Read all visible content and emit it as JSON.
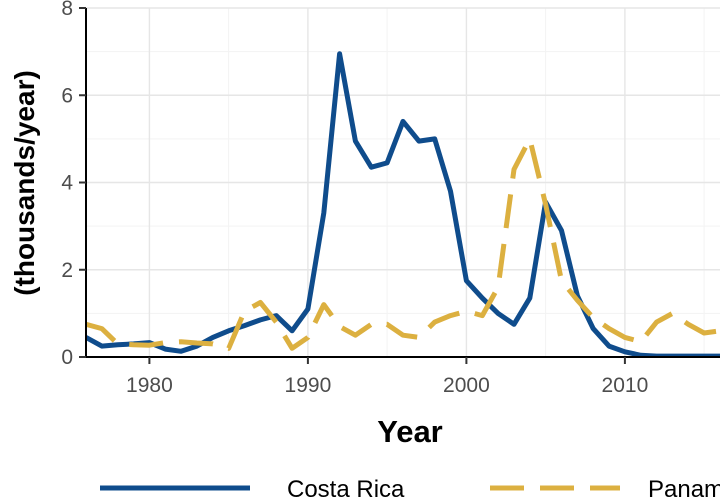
{
  "chart_data": {
    "type": "line",
    "title": "",
    "xlabel": "Year",
    "ylabel": "(thousands/year)",
    "xlim": [
      1976,
      2016
    ],
    "ylim": [
      0,
      8
    ],
    "x_ticks": [
      1980,
      1990,
      2000,
      2010
    ],
    "y_ticks": [
      0,
      2,
      4,
      6,
      8
    ],
    "grid": true,
    "legend_position": "bottom",
    "series": [
      {
        "name": "Costa Rica",
        "color": "#0f4c8c",
        "style": "solid",
        "x": [
          1976,
          1977,
          1978,
          1979,
          1980,
          1981,
          1982,
          1983,
          1984,
          1985,
          1986,
          1987,
          1988,
          1989,
          1990,
          1991,
          1992,
          1993,
          1994,
          1995,
          1996,
          1997,
          1998,
          1999,
          2000,
          2001,
          2002,
          2003,
          2004,
          2005,
          2006,
          2007,
          2008,
          2009,
          2010,
          2011,
          2012,
          2013,
          2014,
          2015,
          2016
        ],
        "values": [
          0.45,
          0.25,
          0.28,
          0.3,
          0.33,
          0.18,
          0.13,
          0.25,
          0.45,
          0.6,
          0.72,
          0.85,
          0.95,
          0.6,
          1.1,
          3.3,
          6.95,
          4.95,
          4.35,
          4.45,
          5.4,
          4.95,
          5.0,
          3.8,
          1.75,
          1.35,
          1.0,
          0.75,
          1.35,
          3.55,
          2.9,
          1.4,
          0.65,
          0.25,
          0.12,
          0.04,
          0.02,
          0.02,
          0.02,
          0.02,
          0.02
        ]
      },
      {
        "name": "Panama",
        "color": "#dcb040",
        "style": "dashed",
        "x": [
          1976,
          1977,
          1978,
          1979,
          1980,
          1981,
          1982,
          1983,
          1984,
          1985,
          1986,
          1987,
          1988,
          1989,
          1990,
          1991,
          1992,
          1993,
          1994,
          1995,
          1996,
          1997,
          1998,
          1999,
          2000,
          2001,
          2002,
          2003,
          2004,
          2005,
          2006,
          2007,
          2008,
          2009,
          2010,
          2011,
          2012,
          2013,
          2014,
          2015,
          2016
        ],
        "values": [
          0.75,
          0.65,
          0.3,
          0.28,
          0.27,
          0.33,
          0.35,
          0.32,
          0.3,
          0.2,
          1.05,
          1.25,
          0.8,
          0.2,
          0.45,
          1.2,
          0.7,
          0.5,
          0.75,
          0.75,
          0.5,
          0.45,
          0.8,
          0.95,
          1.05,
          0.95,
          1.6,
          4.3,
          5.0,
          3.5,
          1.75,
          1.3,
          0.9,
          0.65,
          0.45,
          0.35,
          0.8,
          1.0,
          0.75,
          0.55,
          0.6
        ]
      }
    ]
  }
}
